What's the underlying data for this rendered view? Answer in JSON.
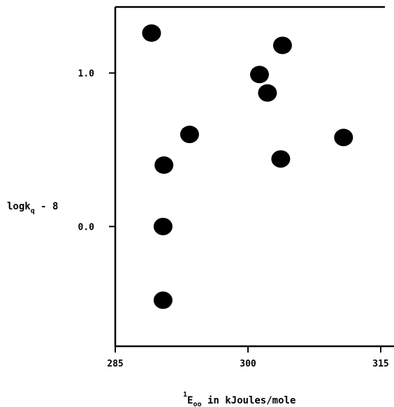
{
  "chart_data": {
    "type": "scatter",
    "title": "",
    "xlabel": {
      "superscript": "1",
      "main": "E",
      "subscript": "oo",
      "suffix": " in kJoules/mole"
    },
    "ylabel": {
      "main": "logk",
      "subscript": "q",
      "suffix": " - 8"
    },
    "xlim": [
      285,
      316.5
    ],
    "ylim": [
      -0.78,
      1.43
    ],
    "x_ticks": [
      {
        "value": 285,
        "label": "285"
      },
      {
        "value": 300,
        "label": "300"
      },
      {
        "value": 315,
        "label": "315"
      }
    ],
    "y_ticks": [
      {
        "value": 1.0,
        "label": "1.0"
      },
      {
        "value": 0.0,
        "label": "0.0"
      }
    ],
    "grid": false,
    "points": [
      {
        "x": 289.1,
        "y": 1.26
      },
      {
        "x": 290.5,
        "y": 0.4
      },
      {
        "x": 290.4,
        "y": 0.0
      },
      {
        "x": 290.4,
        "y": -0.48
      },
      {
        "x": 293.4,
        "y": 0.6
      },
      {
        "x": 301.3,
        "y": 0.99
      },
      {
        "x": 302.2,
        "y": 0.87
      },
      {
        "x": 303.9,
        "y": 1.18
      },
      {
        "x": 303.7,
        "y": 0.44
      },
      {
        "x": 310.8,
        "y": 0.58
      }
    ],
    "colors": {
      "marker": "#000000",
      "axis": "#000000"
    }
  }
}
